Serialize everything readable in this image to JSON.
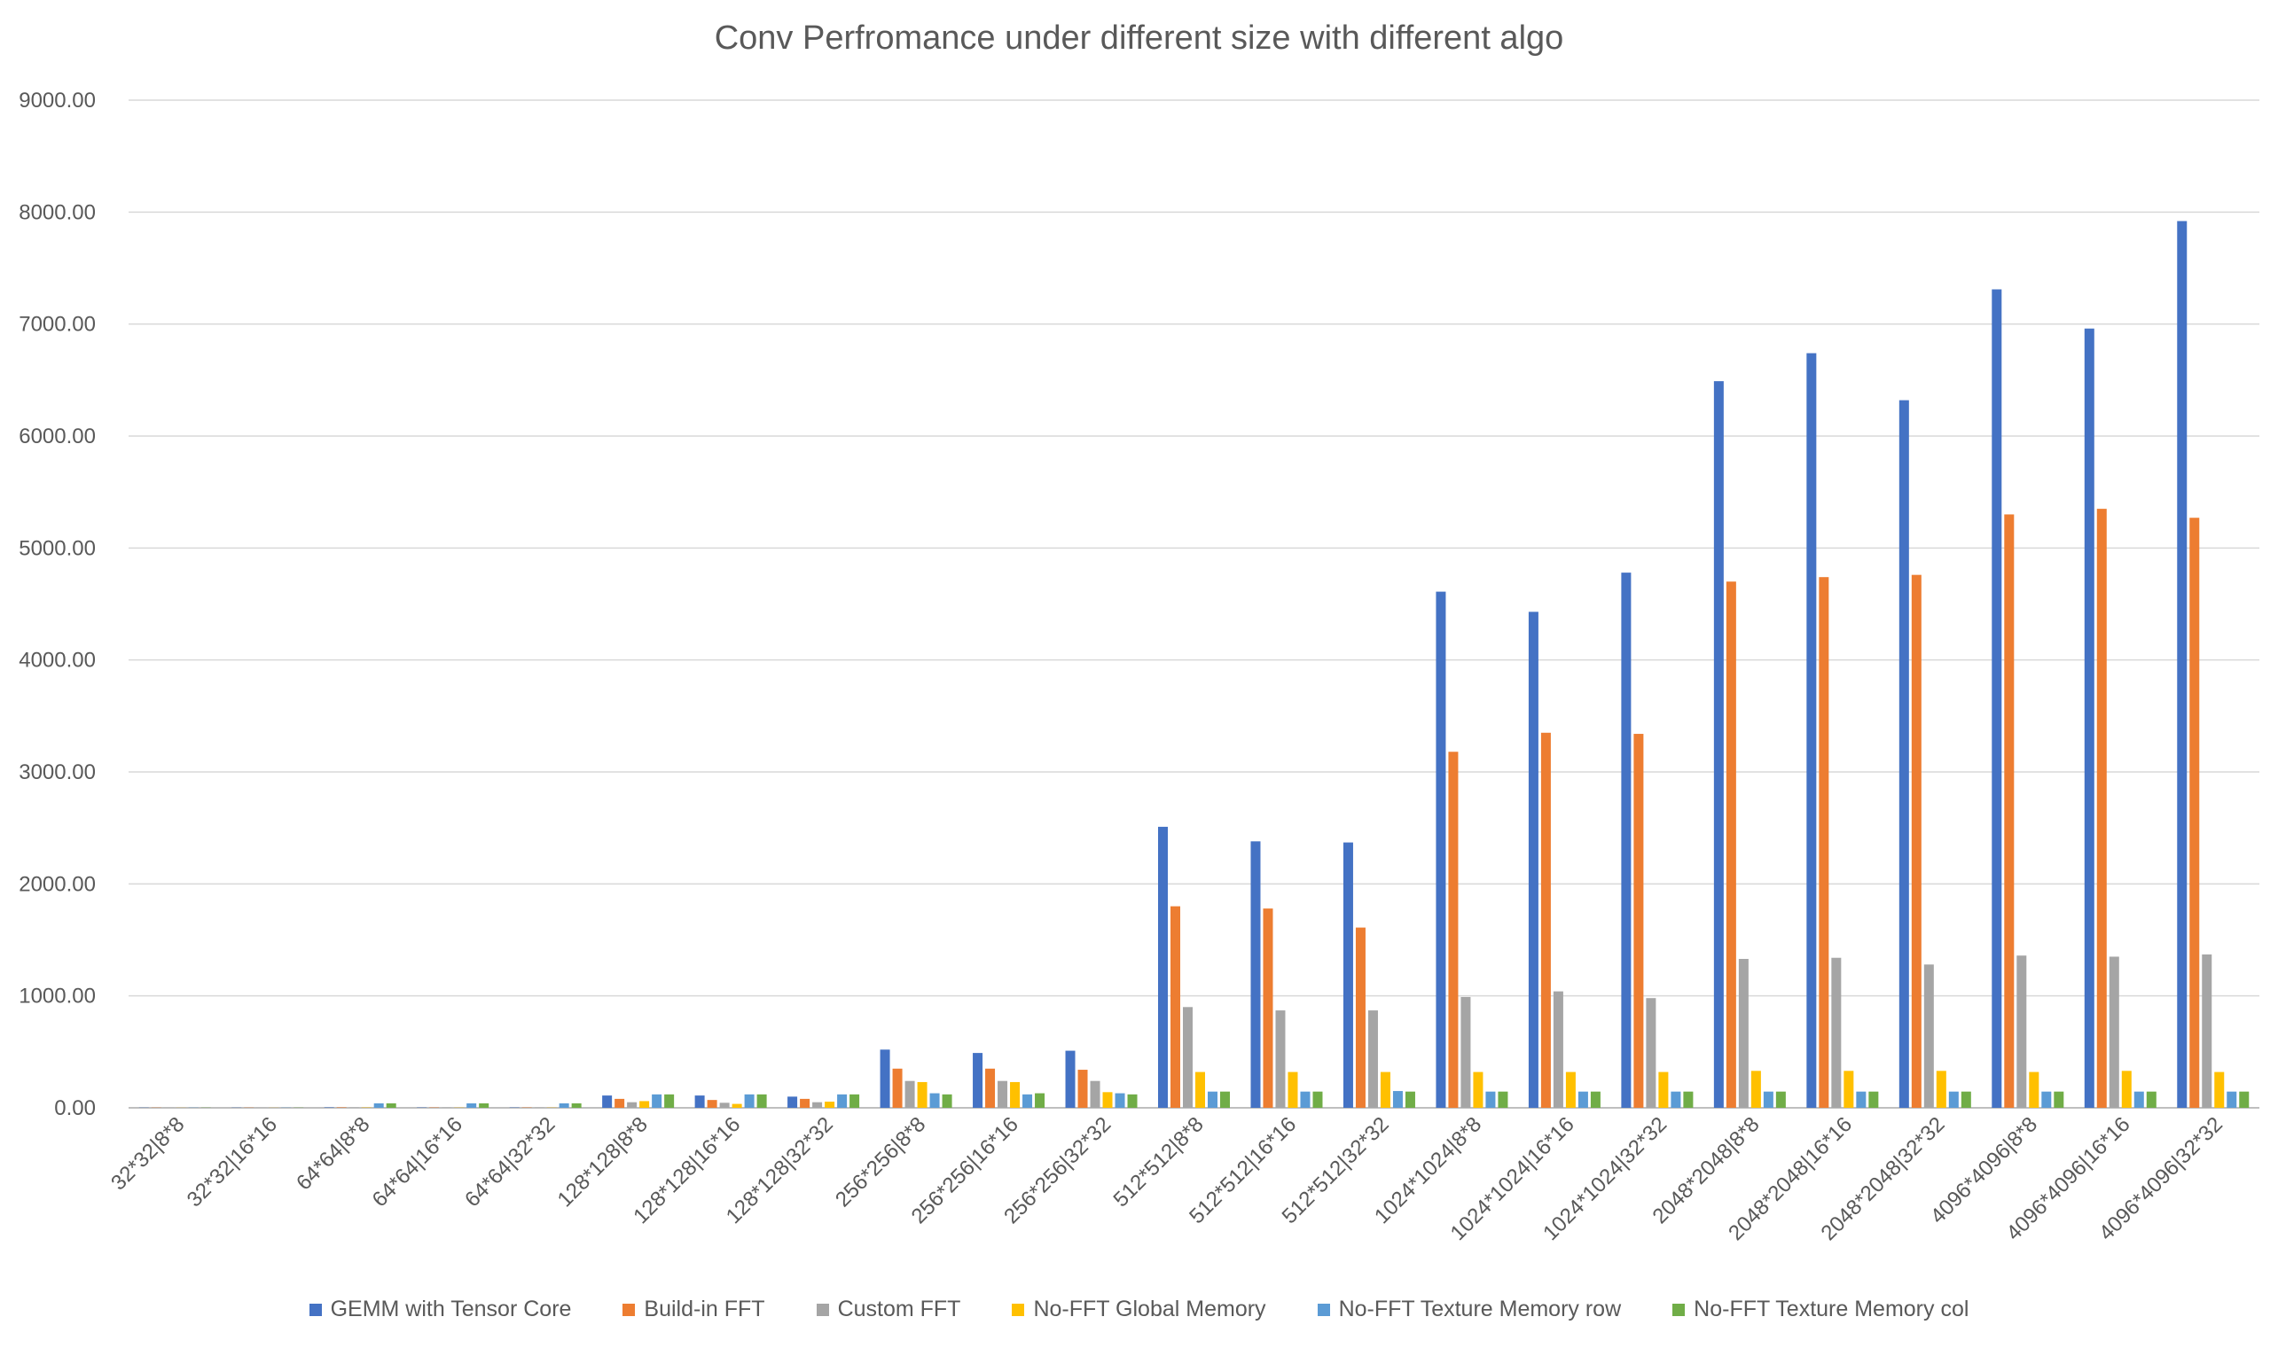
{
  "chart_data": {
    "type": "bar",
    "title": "Conv Perfromance under different size with different algo",
    "xlabel": "",
    "ylabel": "",
    "ylim": [
      0,
      9000
    ],
    "y_ticks": [
      "0.00",
      "1000.00",
      "2000.00",
      "3000.00",
      "4000.00",
      "5000.00",
      "6000.00",
      "7000.00",
      "8000.00",
      "9000.00"
    ],
    "grid": true,
    "legend_position": "bottom",
    "categories": [
      "32*32|8*8",
      "32*32|16*16",
      "64*64|8*8",
      "64*64|16*16",
      "64*64|32*32",
      "128*128|8*8",
      "128*128|16*16",
      "128*128|32*32",
      "256*256|8*8",
      "256*256|16*16",
      "256*256|32*32",
      "512*512|8*8",
      "512*512|16*16",
      "512*512|32*32",
      "1024*1024|8*8",
      "1024*1024|16*16",
      "1024*1024|32*32",
      "2048*2048|8*8",
      "2048*2048|16*16",
      "2048*2048|32*32",
      "4096*4096|8*8",
      "4096*4096|16*16",
      "4096*4096|32*32"
    ],
    "series": [
      {
        "name": "GEMM with Tensor Core",
        "color": "#4472C4",
        "values": [
          2,
          2,
          4,
          3,
          3,
          110,
          110,
          100,
          520,
          490,
          510,
          2510,
          2380,
          2370,
          4610,
          4430,
          4780,
          6490,
          6740,
          6320,
          7310,
          6960,
          7920
        ]
      },
      {
        "name": "Build-in FFT",
        "color": "#ED7D31",
        "values": [
          2,
          2,
          4,
          3,
          3,
          80,
          70,
          80,
          350,
          350,
          340,
          1800,
          1780,
          1610,
          3180,
          3350,
          3340,
          4700,
          4740,
          4760,
          5300,
          5350,
          5270
        ]
      },
      {
        "name": "Custom FFT",
        "color": "#A5A5A5",
        "values": [
          1,
          1,
          3,
          2,
          2,
          50,
          45,
          50,
          240,
          240,
          240,
          900,
          870,
          870,
          990,
          1040,
          980,
          1330,
          1340,
          1280,
          1360,
          1350,
          1370
        ]
      },
      {
        "name": "No-FFT Global Memory",
        "color": "#FFC000",
        "values": [
          1,
          1,
          3,
          2,
          2,
          60,
          35,
          55,
          230,
          230,
          140,
          320,
          320,
          320,
          320,
          320,
          320,
          330,
          330,
          330,
          320,
          330,
          320
        ]
      },
      {
        "name": "No-FFT Texture Memory row",
        "color": "#5B9BD5",
        "values": [
          2,
          2,
          40,
          40,
          40,
          120,
          120,
          120,
          130,
          120,
          130,
          145,
          145,
          150,
          145,
          145,
          145,
          145,
          145,
          145,
          145,
          145,
          145
        ]
      },
      {
        "name": "No-FFT Texture Memory col",
        "color": "#70AD47",
        "values": [
          2,
          2,
          40,
          40,
          40,
          120,
          120,
          120,
          120,
          130,
          120,
          145,
          145,
          145,
          145,
          145,
          145,
          145,
          145,
          145,
          145,
          145,
          145
        ]
      }
    ]
  }
}
